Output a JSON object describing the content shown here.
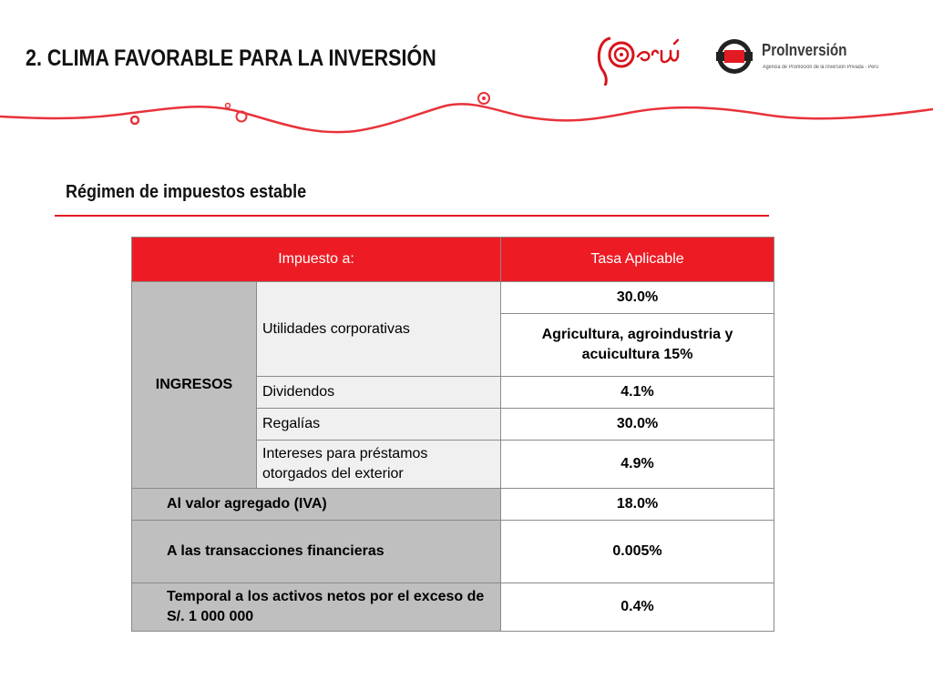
{
  "header": {
    "title": "2.  CLIMA FAVORABLE PARA LA INVERSIÓN",
    "peru_logo_text": "Perú",
    "proinversion_name": "ProInversión",
    "proinversion_tagline": "Agencia de Promoción de la Inversión Privada - Perú",
    "accent_color": "#e21a22"
  },
  "section": {
    "subtitle": "Régimen de impuestos estable"
  },
  "table": {
    "col_tax": "Impuesto a:",
    "col_rate": "Tasa Aplicable",
    "ingresos_label": "INGRESOS",
    "rows": [
      {
        "tax": "Utilidades corporativas",
        "rate": "30.0%",
        "rate_extra": "Agricultura, agroindustria y acuicultura 15%"
      },
      {
        "tax": "Dividendos",
        "rate": "4.1%"
      },
      {
        "tax": "Regalías",
        "rate": "30.0%"
      },
      {
        "tax": "Intereses para préstamos otorgados del exterior",
        "rate": "4.9%"
      }
    ],
    "other_rows": [
      {
        "tax": "Al valor agregado (IVA)",
        "rate": "18.0%"
      },
      {
        "tax": "A las transacciones financieras",
        "rate": "0.005%"
      },
      {
        "tax": "Temporal a los activos netos por el exceso de S/. 1 000 000",
        "rate": "0.4%"
      }
    ]
  }
}
